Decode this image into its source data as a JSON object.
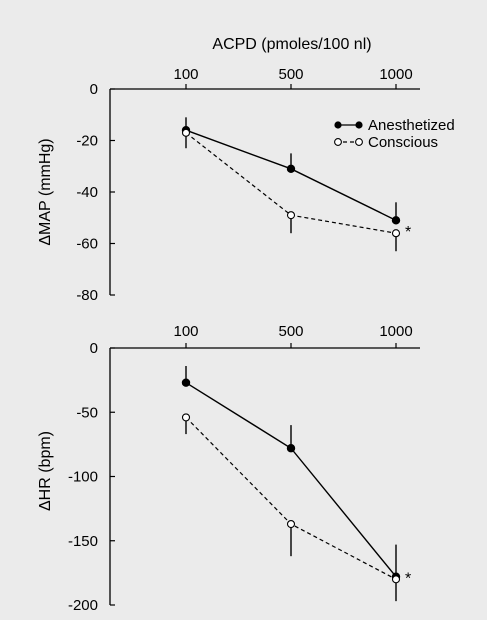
{
  "chart_data": [
    {
      "type": "line",
      "xlabel": "ACPD (pmoles/100 nl)",
      "ylabel": "ΔMAP (mmHg)",
      "categories": [
        "100",
        "500",
        "1000"
      ],
      "ylim": [
        -80,
        0
      ],
      "yticks": [
        0,
        -20,
        -40,
        -60,
        -80
      ],
      "ytick_labels": [
        "0",
        "-20",
        "-40",
        "-60",
        "-80"
      ],
      "legend_position": "top-right",
      "series": [
        {
          "name": "Anesthetized",
          "marker": "filled-circle",
          "line_style": "solid",
          "values": [
            -16,
            -31,
            -51
          ],
          "error_up": [
            5,
            6,
            7
          ],
          "error_down": [
            0,
            0,
            0
          ]
        },
        {
          "name": "Conscious",
          "marker": "open-circle",
          "line_style": "dashed",
          "values": [
            -17,
            -49,
            -56
          ],
          "error_up": [
            0,
            0,
            0
          ],
          "error_down": [
            6,
            7,
            7
          ]
        }
      ],
      "annotations": [
        {
          "text": "*",
          "category": "1000",
          "y": -56
        }
      ]
    },
    {
      "type": "line",
      "xlabel": "",
      "ylabel": "ΔHR (bpm)",
      "categories": [
        "100",
        "500",
        "1000"
      ],
      "ylim": [
        -200,
        0
      ],
      "yticks": [
        0,
        -50,
        -100,
        -150,
        -200
      ],
      "ytick_labels": [
        "0",
        "-50",
        "-100",
        "-150",
        "-200"
      ],
      "series": [
        {
          "name": "Anesthetized",
          "marker": "filled-circle",
          "line_style": "solid",
          "values": [
            -27,
            -78,
            -178
          ],
          "error_up": [
            13,
            18,
            25
          ],
          "error_down": [
            0,
            0,
            0
          ]
        },
        {
          "name": "Conscious",
          "marker": "open-circle",
          "line_style": "dashed",
          "values": [
            -54,
            -137,
            -180
          ],
          "error_up": [
            0,
            0,
            0
          ],
          "error_down": [
            13,
            25,
            17
          ]
        }
      ],
      "annotations": [
        {
          "text": "*",
          "category": "1000",
          "y": -180
        }
      ]
    }
  ]
}
